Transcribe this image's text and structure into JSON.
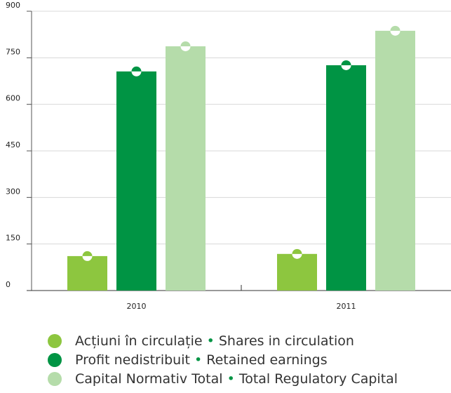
{
  "chart_data": {
    "type": "bar",
    "categories": [
      "2010",
      "2011"
    ],
    "series": [
      {
        "name": "Acțiuni în circulație • Shares in circulation",
        "color": "#8dc63f",
        "values": [
          111,
          118
        ]
      },
      {
        "name": "Profit nedistribuit • Retained earnings",
        "color": "#009444",
        "values": [
          706,
          726
        ]
      },
      {
        "name": "Capital Normativ Total • Total Regulatory Capital",
        "color": "#b5dcaa",
        "values": [
          787,
          837
        ]
      }
    ],
    "ylim": [
      0,
      900
    ],
    "yticks": [
      0,
      150,
      300,
      450,
      600,
      750,
      900
    ],
    "grid": true,
    "legend": "bottom"
  }
}
